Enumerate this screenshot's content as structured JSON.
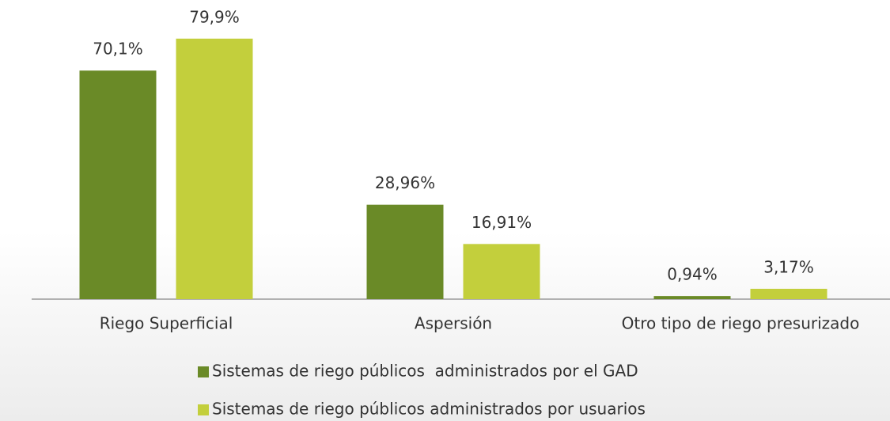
{
  "chart_data": {
    "type": "bar",
    "categories": [
      "Riego Superficial",
      "Aspersión",
      "Otro tipo de riego presurizado"
    ],
    "series": [
      {
        "name": "Sistemas de riego públicos  administrados por el GAD",
        "color": "#6a8a27",
        "values": [
          70.1,
          28.96,
          0.94
        ],
        "value_labels": [
          "70,1%",
          "28,96%",
          "0,94%"
        ]
      },
      {
        "name": "Sistemas de riego públicos administrados por usuarios",
        "color": "#c3cf3c",
        "values": [
          79.9,
          16.91,
          3.17
        ],
        "value_labels": [
          "79,9%",
          "16,91%",
          "3,17%"
        ]
      }
    ]
  }
}
